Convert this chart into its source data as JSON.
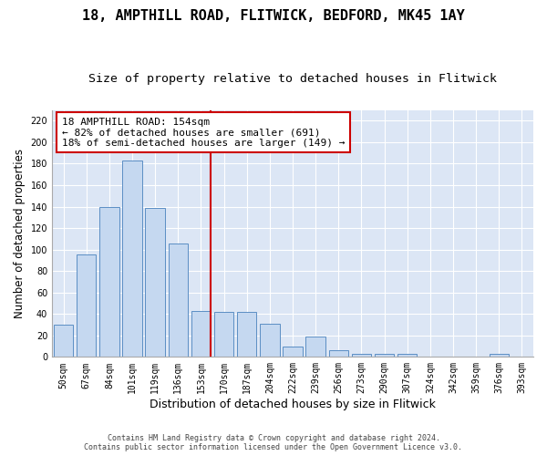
{
  "title1": "18, AMPTHILL ROAD, FLITWICK, BEDFORD, MK45 1AY",
  "title2": "Size of property relative to detached houses in Flitwick",
  "xlabel": "Distribution of detached houses by size in Flitwick",
  "ylabel": "Number of detached properties",
  "bar_labels": [
    "50sqm",
    "67sqm",
    "84sqm",
    "101sqm",
    "119sqm",
    "136sqm",
    "153sqm",
    "170sqm",
    "187sqm",
    "204sqm",
    "222sqm",
    "239sqm",
    "256sqm",
    "273sqm",
    "290sqm",
    "307sqm",
    "324sqm",
    "342sqm",
    "359sqm",
    "376sqm",
    "393sqm"
  ],
  "bar_values": [
    30,
    95,
    140,
    183,
    139,
    106,
    43,
    42,
    42,
    31,
    10,
    19,
    6,
    3,
    3,
    3,
    0,
    0,
    0,
    3,
    0
  ],
  "bar_color": "#c5d8f0",
  "bar_edge_color": "#5b8ec4",
  "vline_color": "#cc0000",
  "annotation_text": "18 AMPTHILL ROAD: 154sqm\n← 82% of detached houses are smaller (691)\n18% of semi-detached houses are larger (149) →",
  "annotation_box_color": "#ffffff",
  "annotation_box_edge": "#cc0000",
  "ylim": [
    0,
    230
  ],
  "yticks": [
    0,
    20,
    40,
    60,
    80,
    100,
    120,
    140,
    160,
    180,
    200,
    220
  ],
  "figure_bg": "#ffffff",
  "plot_bg_color": "#dce6f5",
  "footer": "Contains HM Land Registry data © Crown copyright and database right 2024.\nContains public sector information licensed under the Open Government Licence v3.0.",
  "title1_fontsize": 11,
  "title2_fontsize": 9.5,
  "xlabel_fontsize": 9,
  "ylabel_fontsize": 8.5,
  "tick_fontsize": 7,
  "annotation_fontsize": 8,
  "footer_fontsize": 6
}
